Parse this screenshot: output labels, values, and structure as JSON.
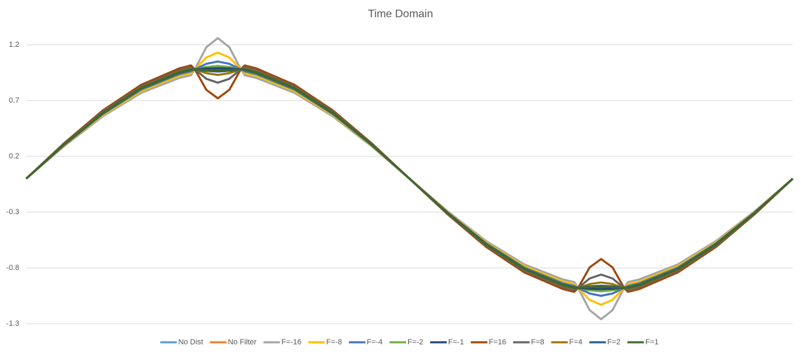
{
  "chart_data": {
    "type": "line",
    "title": "Time Domain",
    "x": [
      0,
      0.05,
      0.1,
      0.15,
      0.2,
      0.215,
      0.22,
      0.235,
      0.25,
      0.265,
      0.28,
      0.285,
      0.3,
      0.35,
      0.4,
      0.45,
      0.5,
      0.55,
      0.6,
      0.65,
      0.7,
      0.715,
      0.72,
      0.735,
      0.75,
      0.765,
      0.78,
      0.785,
      0.8,
      0.85,
      0.9,
      0.95,
      1
    ],
    "xlim": [
      0,
      1
    ],
    "ylim": [
      -1.3,
      1.35
    ],
    "yticks": [
      1.2,
      0.7,
      0.2,
      -0.3,
      -0.8,
      -1.3
    ],
    "grid": true,
    "legend": "bottom",
    "series": [
      {
        "name": "No Dist",
        "color": "#5b9bd5",
        "values": [
          0,
          0.309,
          0.588,
          0.809,
          0.951,
          0.976,
          0.982,
          0.995,
          1,
          0.995,
          0.982,
          0.976,
          0.951,
          0.809,
          0.588,
          0.309,
          0,
          -0.309,
          -0.588,
          -0.809,
          -0.951,
          -0.976,
          -0.982,
          -0.995,
          -1,
          -0.995,
          -0.982,
          -0.976,
          -0.951,
          -0.809,
          -0.588,
          -0.309,
          0
        ]
      },
      {
        "name": "No Filter",
        "color": "#ed7d31",
        "values": [
          0,
          0.309,
          0.588,
          0.809,
          0.951,
          0.976,
          0.98,
          0.98,
          0.98,
          0.98,
          0.98,
          0.976,
          0.951,
          0.809,
          0.588,
          0.309,
          0,
          -0.309,
          -0.588,
          -0.809,
          -0.951,
          -0.976,
          -0.98,
          -0.98,
          -0.98,
          -0.98,
          -0.98,
          -0.976,
          -0.951,
          -0.809,
          -0.588,
          -0.309,
          0
        ]
      },
      {
        "name": "F=-16",
        "color": "#a5a5a5",
        "values": [
          0,
          0.294,
          0.559,
          0.769,
          0.903,
          0.927,
          0.98,
          1.178,
          1.26,
          1.178,
          0.98,
          0.927,
          0.903,
          0.769,
          0.559,
          0.294,
          0,
          -0.294,
          -0.559,
          -0.769,
          -0.903,
          -0.927,
          -0.98,
          -1.178,
          -1.26,
          -1.178,
          -0.98,
          -0.927,
          -0.903,
          -0.769,
          -0.559,
          -0.294,
          0
        ]
      },
      {
        "name": "F=-8",
        "color": "#ffc000",
        "values": [
          0,
          0.3,
          0.57,
          0.785,
          0.922,
          0.947,
          0.98,
          1.086,
          1.13,
          1.086,
          0.98,
          0.947,
          0.922,
          0.785,
          0.57,
          0.3,
          0,
          -0.3,
          -0.57,
          -0.785,
          -0.922,
          -0.947,
          -0.98,
          -1.086,
          -1.13,
          -1.086,
          -0.98,
          -0.947,
          -0.922,
          -0.785,
          -0.57,
          -0.3,
          0
        ]
      },
      {
        "name": "F=-4",
        "color": "#4472c4",
        "values": [
          0,
          0.304,
          0.579,
          0.797,
          0.937,
          0.961,
          0.98,
          1.029,
          1.05,
          1.029,
          0.98,
          0.961,
          0.937,
          0.797,
          0.579,
          0.304,
          0,
          -0.304,
          -0.579,
          -0.797,
          -0.937,
          -0.961,
          -0.98,
          -1.029,
          -1.05,
          -1.029,
          -0.98,
          -0.961,
          -0.937,
          -0.797,
          -0.579,
          -0.304,
          0
        ]
      },
      {
        "name": "F=-2",
        "color": "#70ad47",
        "values": [
          0,
          0.307,
          0.584,
          0.803,
          0.944,
          0.969,
          0.98,
          1.001,
          1.01,
          1.001,
          0.98,
          0.969,
          0.944,
          0.803,
          0.584,
          0.307,
          0,
          -0.307,
          -0.584,
          -0.803,
          -0.944,
          -0.969,
          -0.98,
          -1.001,
          -1.01,
          -1.001,
          -0.98,
          -0.969,
          -0.944,
          -0.803,
          -0.584,
          -0.307,
          0
        ]
      },
      {
        "name": "F=-1",
        "color": "#264478",
        "values": [
          0,
          0.308,
          0.586,
          0.807,
          0.948,
          0.973,
          0.98,
          0.987,
          0.99,
          0.987,
          0.98,
          0.973,
          0.948,
          0.807,
          0.586,
          0.308,
          0,
          -0.308,
          -0.586,
          -0.807,
          -0.948,
          -0.973,
          -0.98,
          -0.987,
          -0.99,
          -0.987,
          -0.98,
          -0.973,
          -0.948,
          -0.807,
          -0.586,
          -0.308,
          0
        ]
      },
      {
        "name": "F=16",
        "color": "#9e480e",
        "values": [
          0,
          0.321,
          0.612,
          0.841,
          0.989,
          1.015,
          0.98,
          0.796,
          0.72,
          0.796,
          0.98,
          1.015,
          0.989,
          0.841,
          0.612,
          0.321,
          0,
          -0.321,
          -0.612,
          -0.841,
          -0.989,
          -1.015,
          -0.98,
          -0.796,
          -0.72,
          -0.796,
          -0.98,
          -1.015,
          -0.989,
          -0.841,
          -0.612,
          -0.321,
          0
        ]
      },
      {
        "name": "F=8",
        "color": "#636363",
        "values": [
          0,
          0.315,
          0.6,
          0.825,
          0.97,
          0.996,
          0.98,
          0.895,
          0.86,
          0.895,
          0.98,
          0.996,
          0.97,
          0.825,
          0.6,
          0.315,
          0,
          -0.315,
          -0.6,
          -0.825,
          -0.97,
          -0.996,
          -0.98,
          -0.895,
          -0.86,
          -0.895,
          -0.98,
          -0.996,
          -0.97,
          -0.825,
          -0.6,
          -0.315,
          0
        ]
      },
      {
        "name": "F=4",
        "color": "#997300",
        "values": [
          0,
          0.312,
          0.594,
          0.817,
          0.961,
          0.986,
          0.98,
          0.945,
          0.93,
          0.945,
          0.98,
          0.986,
          0.961,
          0.817,
          0.594,
          0.312,
          0,
          -0.312,
          -0.594,
          -0.817,
          -0.961,
          -0.986,
          -0.98,
          -0.945,
          -0.93,
          -0.945,
          -0.98,
          -0.986,
          -0.961,
          -0.817,
          -0.594,
          -0.312,
          0
        ]
      },
      {
        "name": "F=2",
        "color": "#255e91",
        "values": [
          0,
          0.311,
          0.591,
          0.813,
          0.956,
          0.981,
          0.98,
          0.966,
          0.96,
          0.966,
          0.98,
          0.981,
          0.956,
          0.813,
          0.591,
          0.311,
          0,
          -0.311,
          -0.591,
          -0.813,
          -0.956,
          -0.981,
          -0.98,
          -0.966,
          -0.96,
          -0.966,
          -0.98,
          -0.981,
          -0.956,
          -0.813,
          -0.591,
          -0.311,
          0
        ]
      },
      {
        "name": "F=1",
        "color": "#43682b",
        "values": [
          0,
          0.31,
          0.589,
          0.811,
          0.953,
          0.978,
          0.98,
          0.973,
          0.97,
          0.973,
          0.98,
          0.978,
          0.953,
          0.811,
          0.589,
          0.31,
          0,
          -0.31,
          -0.589,
          -0.811,
          -0.953,
          -0.978,
          -0.98,
          -0.973,
          -0.97,
          -0.973,
          -0.98,
          -0.978,
          -0.953,
          -0.811,
          -0.589,
          -0.31,
          0
        ]
      }
    ]
  }
}
